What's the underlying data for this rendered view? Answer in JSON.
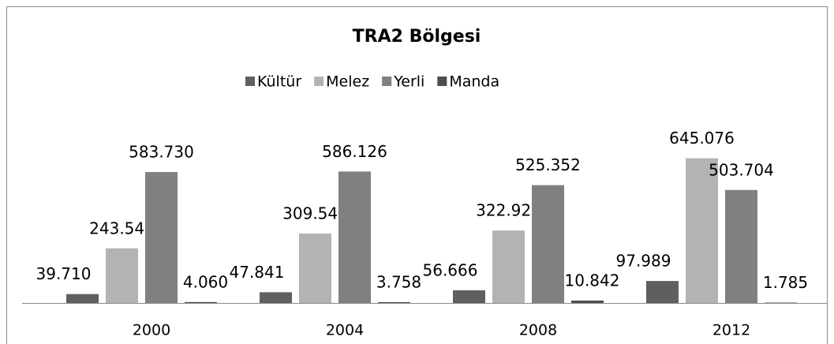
{
  "chart_data": {
    "type": "bar",
    "title": "TRA2 Bölgesi",
    "categories": [
      "2000",
      "2004",
      "2008",
      "2012"
    ],
    "series": [
      {
        "name": "Kültür",
        "color": "#5f5f5f",
        "values": [
          39710,
          47841,
          56666,
          97989
        ],
        "value_labels": [
          "39.710",
          "47.841",
          "56.666",
          "97.989"
        ]
      },
      {
        "name": "Melez",
        "color": "#b3b3b3",
        "values": [
          243540,
          309548,
          322921,
          645076
        ],
        "value_labels": [
          "243.540",
          "309.548",
          "322.921",
          "645.076"
        ]
      },
      {
        "name": "Yerli",
        "color": "#808080",
        "values": [
          583730,
          586126,
          525352,
          503704
        ],
        "value_labels": [
          "583.730",
          "586.126",
          "525.352",
          "503.704"
        ]
      },
      {
        "name": "Manda",
        "color": "#4d4d4d",
        "values": [
          4060,
          3758,
          10842,
          1785
        ],
        "value_labels": [
          "4.060",
          "3.758",
          "10.842",
          "1.785"
        ]
      }
    ],
    "ylim": [
      0,
      700000
    ],
    "legend": "top"
  }
}
